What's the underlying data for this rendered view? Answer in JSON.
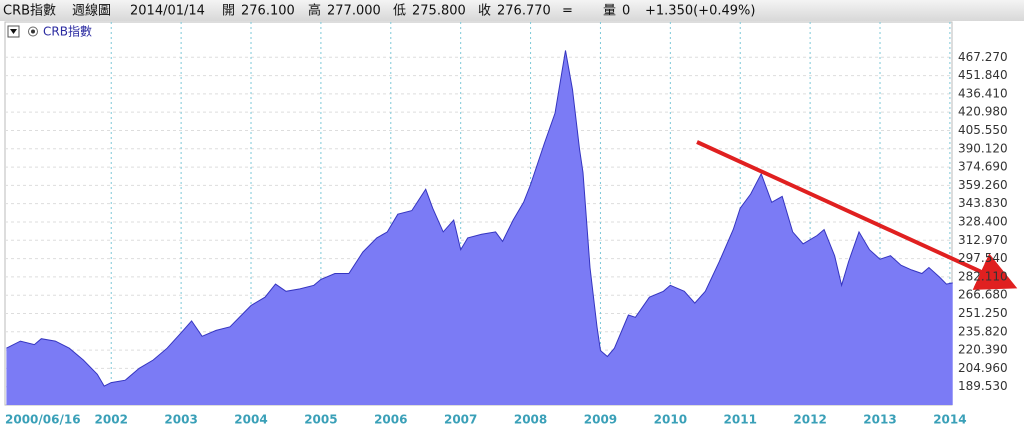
{
  "header": {
    "symbol": "CRB指數",
    "period": "週線圖",
    "date": "2014/01/14",
    "quote": [
      {
        "label": "開",
        "value": "276.100"
      },
      {
        "label": "高",
        "value": "277.000"
      },
      {
        "label": "低",
        "value": "275.800"
      },
      {
        "label": "收",
        "value": "276.770"
      }
    ],
    "close_flag": "=",
    "volume_label": "量",
    "volume": "0",
    "change": "+1.350(+0.49%)"
  },
  "chart_data": {
    "type": "area",
    "color": "#7b7bf5",
    "line_color": "#3535c0",
    "grid": true,
    "x": [
      2000.5,
      2000.7,
      2000.9,
      2001.0,
      2001.2,
      2001.4,
      2001.6,
      2001.8,
      2001.9,
      2002.0,
      2002.2,
      2002.4,
      2002.6,
      2002.8,
      2003.0,
      2003.15,
      2003.3,
      2003.5,
      2003.7,
      2003.9,
      2004.0,
      2004.2,
      2004.35,
      2004.5,
      2004.7,
      2004.9,
      2005.0,
      2005.2,
      2005.4,
      2005.6,
      2005.8,
      2005.95,
      2006.1,
      2006.3,
      2006.5,
      2006.6,
      2006.75,
      2006.9,
      2007.0,
      2007.1,
      2007.3,
      2007.5,
      2007.6,
      2007.75,
      2007.9,
      2008.0,
      2008.2,
      2008.35,
      2008.5,
      2008.6,
      2008.7,
      2008.75,
      2008.85,
      2008.95,
      2009.0,
      2009.1,
      2009.2,
      2009.4,
      2009.5,
      2009.7,
      2009.9,
      2010.0,
      2010.2,
      2010.35,
      2010.5,
      2010.7,
      2010.9,
      2011.0,
      2011.15,
      2011.3,
      2011.45,
      2011.6,
      2011.75,
      2011.9,
      2012.1,
      2012.2,
      2012.35,
      2012.45,
      2012.55,
      2012.7,
      2012.85,
      2013.0,
      2013.15,
      2013.3,
      2013.45,
      2013.6,
      2013.7,
      2013.85,
      2013.95,
      2014.04
    ],
    "series": [
      {
        "name": "CRB指數",
        "values": [
          222,
          228,
          225,
          230,
          228,
          222,
          212,
          200,
          190,
          193,
          195,
          205,
          212,
          222,
          235,
          245,
          232,
          237,
          240,
          252,
          258,
          265,
          276,
          270,
          272,
          275,
          280,
          285,
          285,
          303,
          315,
          320,
          335,
          338,
          356,
          340,
          320,
          330,
          305,
          315,
          318,
          320,
          312,
          330,
          345,
          360,
          395,
          420,
          473,
          440,
          390,
          370,
          290,
          240,
          220,
          215,
          222,
          250,
          248,
          265,
          270,
          275,
          270,
          260,
          270,
          295,
          322,
          340,
          352,
          369,
          345,
          350,
          320,
          310,
          317,
          322,
          300,
          275,
          295,
          320,
          305,
          297,
          300,
          292,
          288,
          285,
          290,
          282,
          276,
          277
        ]
      }
    ],
    "xlim": [
      2000.48,
      2014.03
    ],
    "xticks": [
      {
        "value": 2000.48,
        "label": "2000/06/16"
      },
      2002,
      2003,
      2004,
      2005,
      2006,
      2007,
      2008,
      2009,
      2010,
      2011,
      2012,
      2013,
      2014
    ],
    "ylim": [
      174.1,
      497
    ],
    "yticks": [
      {
        "value": 189.53,
        "label": "189.530"
      },
      {
        "value": 204.96,
        "label": "204.960"
      },
      {
        "value": 220.39,
        "label": "220.390"
      },
      {
        "value": 235.82,
        "label": "235.820"
      },
      {
        "value": 251.25,
        "label": "251.250"
      },
      {
        "value": 266.68,
        "label": "266.680"
      },
      {
        "value": 282.11,
        "label": "282.110"
      },
      {
        "value": 297.54,
        "label": "297.540"
      },
      {
        "value": 312.97,
        "label": "312.970"
      },
      {
        "value": 328.4,
        "label": "328.400"
      },
      {
        "value": 343.83,
        "label": "343.830"
      },
      {
        "value": 359.26,
        "label": "359.260"
      },
      {
        "value": 374.69,
        "label": "374.690"
      },
      {
        "value": 390.12,
        "label": "390.120"
      },
      {
        "value": 405.55,
        "label": "405.550"
      },
      {
        "value": 420.98,
        "label": "420.980"
      },
      {
        "value": 436.41,
        "label": "436.410"
      },
      {
        "value": 451.84,
        "label": "451.840"
      },
      {
        "value": 467.27,
        "label": "467.270"
      }
    ]
  }
}
